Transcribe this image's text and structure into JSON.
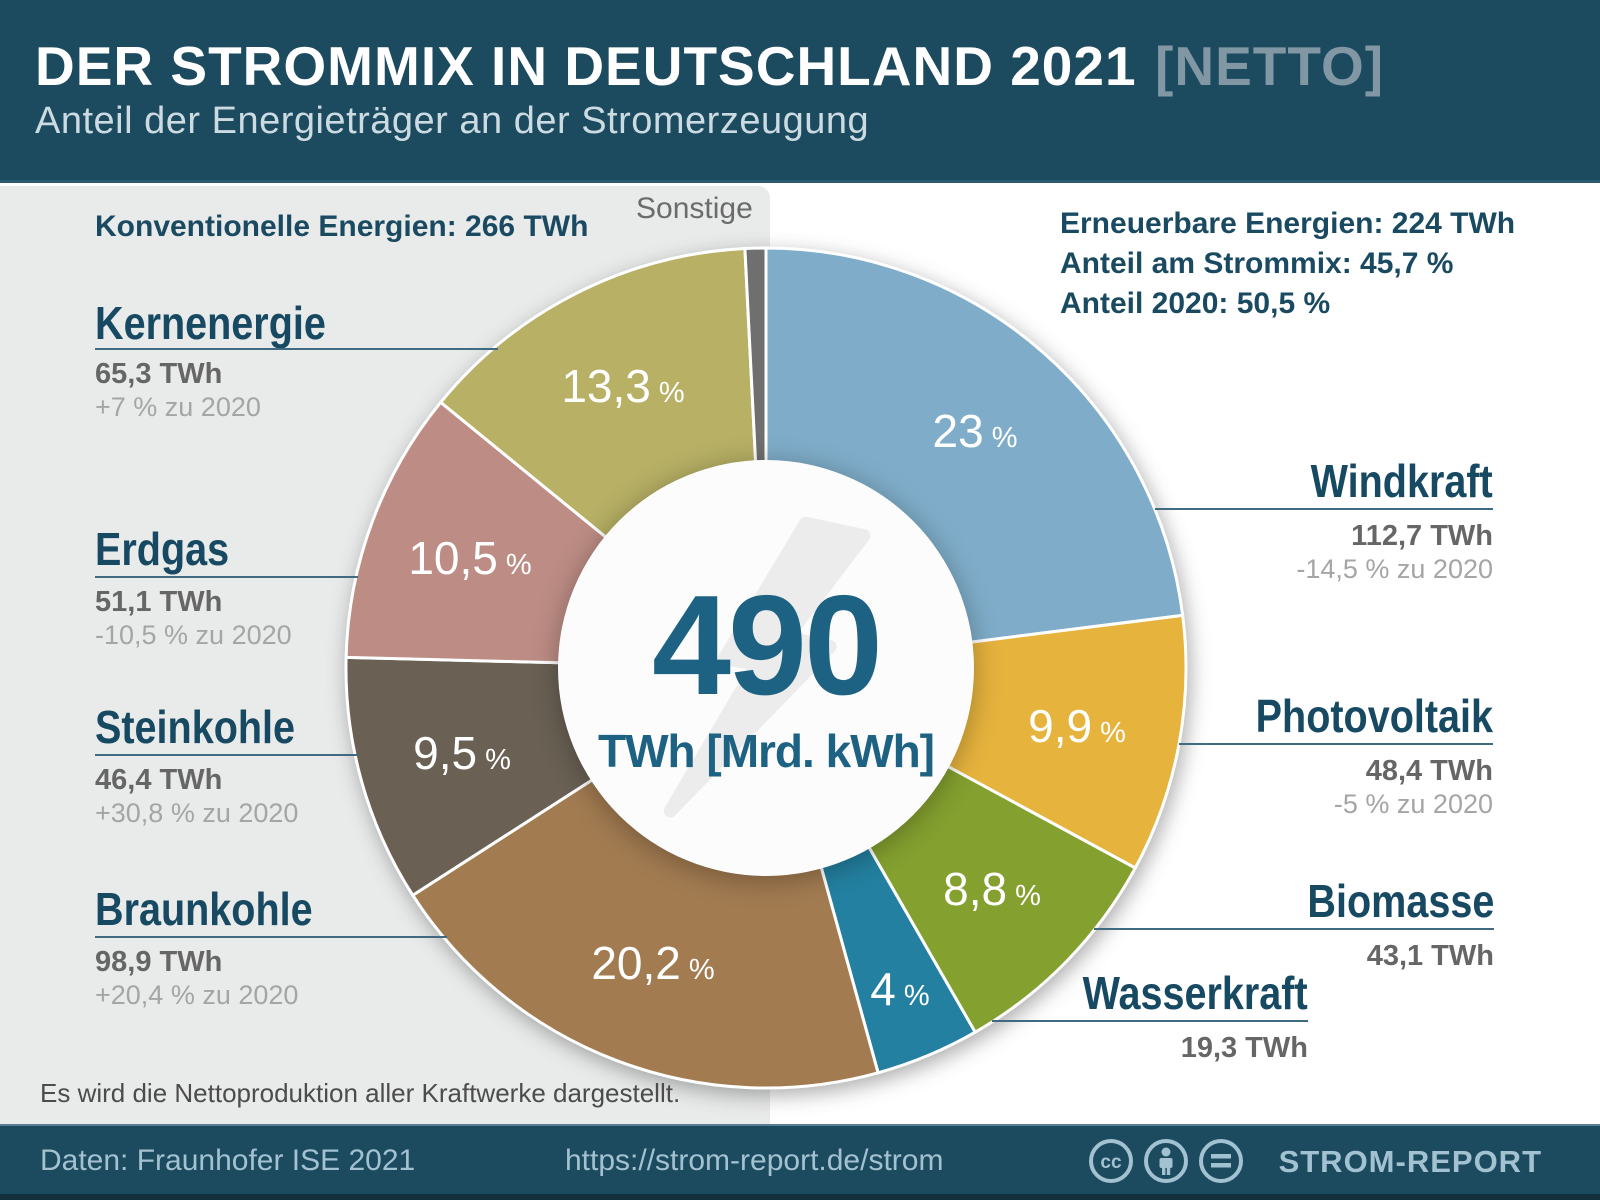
{
  "header": {
    "title": "DER STROMMIX IN DEUTSCHLAND 2021",
    "title_suffix": "[NETTO]",
    "subtitle": "Anteil der Energieträger an der Stromerzeugung"
  },
  "panel_left": {
    "summary": "Konventionelle Energien: 266 TWh"
  },
  "panel_right": {
    "summary_line1": "Erneuerbare Energien: 224 TWh",
    "summary_line2": "Anteil am Strommix: 45,7 %",
    "summary_line3": "Anteil 2020: 50,5 %"
  },
  "other_label": "Sonstige",
  "note": "Es wird die Nettoproduktion aller Kraftwerke dargestellt.",
  "center": {
    "value": "490",
    "unit": "TWh [Mrd. kWh]"
  },
  "footer": {
    "source": "Daten: Fraunhofer ISE 2021",
    "url": "https://strom-report.de/strom",
    "brand": "STROM-REPORT",
    "license_icons": [
      "cc-icon",
      "attribution-icon",
      "no-derivatives-icon"
    ]
  },
  "chart_data": {
    "type": "pie",
    "title": "Der Strommix in Deutschland 2021 [Netto]",
    "unit": "%",
    "total_twh": 490,
    "donut": true,
    "groups": [
      {
        "name": "Konventionelle Energien",
        "twh": 266
      },
      {
        "name": "Erneuerbare Energien",
        "twh": 224,
        "share_2021": "45,7 %",
        "share_2020": "50,5 %"
      }
    ],
    "slices": [
      {
        "name": "Windkraft",
        "percent": 23.0,
        "percent_display": "23",
        "twh_display": "112,7 TWh",
        "change_display": "-14,5 % zu 2020",
        "color": "#7fadc9"
      },
      {
        "name": "Photovoltaik",
        "percent": 9.9,
        "percent_display": "9,9",
        "twh_display": "48,4 TWh",
        "change_display": "-5 % zu 2020",
        "color": "#e6b33d"
      },
      {
        "name": "Biomasse",
        "percent": 8.8,
        "percent_display": "8,8",
        "twh_display": "43,1 TWh",
        "color": "#84a02f"
      },
      {
        "name": "Wasserkraft",
        "percent": 4.0,
        "percent_display": "4",
        "twh_display": "19,3 TWh",
        "color": "#2380a0"
      },
      {
        "name": "Braunkohle",
        "percent": 20.2,
        "percent_display": "20,2",
        "twh_display": "98,9 TWh",
        "change_display": "+20,4 % zu 2020",
        "color": "#a27b51"
      },
      {
        "name": "Steinkohle",
        "percent": 9.5,
        "percent_display": "9,5",
        "twh_display": "46,4 TWh",
        "change_display": "+30,8 % zu 2020",
        "color": "#6a6154"
      },
      {
        "name": "Erdgas",
        "percent": 10.5,
        "percent_display": "10,5",
        "twh_display": "51,1 TWh",
        "change_display": "-10,5 % zu 2020",
        "color": "#bd8d85"
      },
      {
        "name": "Kernenergie",
        "percent": 13.3,
        "percent_display": "13,3",
        "twh_display": "65,3 TWh",
        "change_display": "+7 % zu 2020",
        "color": "#b7b065"
      },
      {
        "name": "Sonstige",
        "percent": 0.8,
        "percent_display": "",
        "color": "#6f6f6f"
      }
    ]
  }
}
